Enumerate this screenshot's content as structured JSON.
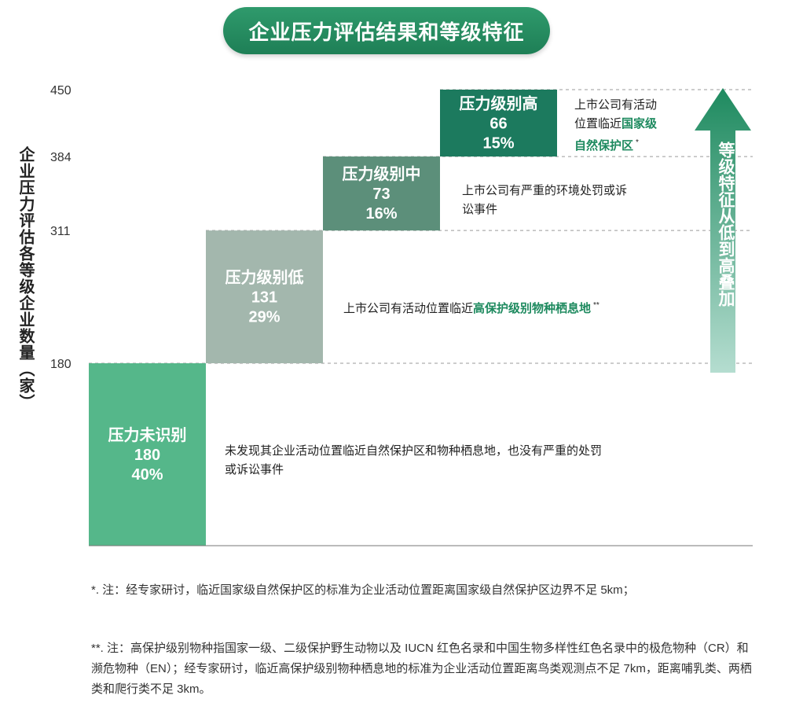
{
  "header": {
    "title": "企业压力评估结果和等级特征"
  },
  "colors": {
    "level_unidentified": "#55b78a",
    "level_low": "#a3b7ad",
    "level_mid": "#5c8f7a",
    "level_high": "#1c7a5e",
    "arrow_top": "#1e8a5f",
    "arrow_bottom": "#b5ddd0",
    "highlight": "#1e8a5f"
  },
  "chart_data": {
    "type": "bar",
    "ylabel": "企业压力评估各等级企业数量（家）",
    "yticks": [
      180,
      311,
      384,
      450
    ],
    "ylim": [
      0,
      450
    ],
    "grid": "dashed at tick values",
    "levels": [
      {
        "name": "压力未识别",
        "value": 180,
        "pct": "40%",
        "from": 0,
        "to": 180
      },
      {
        "name": "压力级别低",
        "value": 131,
        "pct": "29%",
        "from": 180,
        "to": 311
      },
      {
        "name": "压力级别中",
        "value": 73,
        "pct": "16%",
        "from": 311,
        "to": 384
      },
      {
        "name": "压力级别高",
        "value": 66,
        "pct": "15%",
        "from": 384,
        "to": 450
      }
    ]
  },
  "descriptions": {
    "unidentified_1": "未发现其企业活动位置临近自然保护区和物种栖息地，也没有严重的处罚",
    "unidentified_2": "或诉讼事件",
    "low_pre": "上市公司有活动位置临近",
    "low_hl": "高保护级别物种栖息地",
    "low_mark": "**",
    "mid_1": "上市公司有严重的环境处罚或诉",
    "mid_2": "讼事件",
    "high_1": "上市公司有活动",
    "high_2_pre": "位置临近",
    "high_2_hl": "国家级",
    "high_3_hl": "自然保护区",
    "high_mark": "*"
  },
  "arrow": {
    "label": "等级特征从低到高叠加"
  },
  "footnotes": {
    "note1": "*. 注：经专家研讨，临近国家级自然保护区的标准为企业活动位置距离国家级自然保护区边界不足 5km；",
    "note2": "**. 注：高保护级别物种指国家一级、二级保护野生动物以及 IUCN 红色名录和中国生物多样性红色名录中的极危物种（CR）和濒危物种（EN）；经专家研讨，临近高保护级别物种栖息地的标准为企业活动位置距离鸟类观测点不足 7km，距离哺乳类、两栖类和爬行类不足 3km。"
  }
}
